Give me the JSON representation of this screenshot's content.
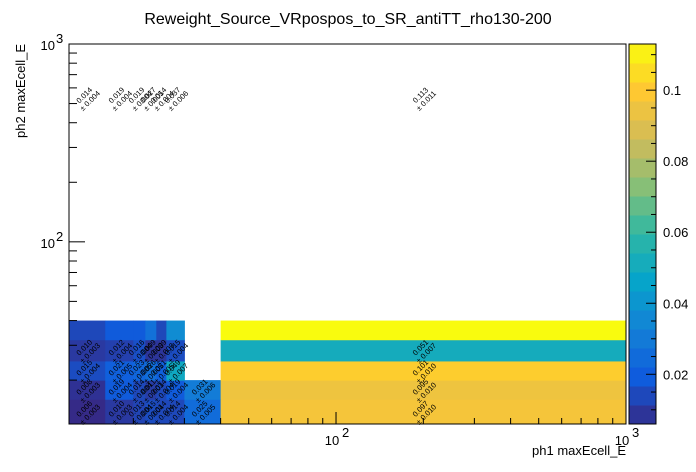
{
  "chart_data": {
    "type": "heatmap",
    "title": "Reweight_Source_VRpospos_to_SR_antiTT_rho130-200",
    "xlabel": "ph1 maxEcell_E",
    "ylabel": "ph2 maxEcell_E",
    "x_scale": "log",
    "y_scale": "log",
    "xlim": [
      12,
      1000
    ],
    "ylim": [
      12,
      1000
    ],
    "x_tick_labels": [
      {
        "value": 100,
        "label": "10",
        "exp": "2"
      },
      {
        "value": 1000,
        "label": "10",
        "exp": "3"
      }
    ],
    "y_tick_labels": [
      {
        "value": 100,
        "label": "10",
        "exp": "2"
      },
      {
        "value": 1000,
        "label": "10",
        "exp": "3"
      }
    ],
    "x_edges": [
      12,
      16,
      20,
      22,
      24,
      26,
      30,
      40,
      1000
    ],
    "y_edges": [
      12,
      16,
      20,
      25,
      32,
      40,
      1000
    ],
    "cells": [
      {
        "ix": 0,
        "iy": 0,
        "value": 0.006,
        "error": 0.003
      },
      {
        "ix": 1,
        "iy": 0,
        "value": 0.01,
        "error": 0.003
      },
      {
        "ix": 2,
        "iy": 0,
        "value": 0.013,
        "error": 0.004
      },
      {
        "ix": 3,
        "iy": 0,
        "value": 0.015,
        "error": 0.004
      },
      {
        "ix": 4,
        "iy": 0,
        "value": 0.014,
        "error": 0.004
      },
      {
        "ix": 5,
        "iy": 0,
        "value": 0.014,
        "error": 0.004
      },
      {
        "ix": 6,
        "iy": 0,
        "value": 0.025,
        "error": 0.005
      },
      {
        "ix": 7,
        "iy": 0,
        "value": 0.097,
        "error": 0.01
      },
      {
        "ix": 0,
        "iy": 1,
        "value": 0.008,
        "error": 0.003
      },
      {
        "ix": 1,
        "iy": 1,
        "value": 0.019,
        "error": 0.004
      },
      {
        "ix": 2,
        "iy": 1,
        "value": 0.014,
        "error": 0.004
      },
      {
        "ix": 3,
        "iy": 1,
        "value": 0.011,
        "error": 0.003
      },
      {
        "ix": 4,
        "iy": 1,
        "value": 0.014,
        "error": 0.004
      },
      {
        "ix": 5,
        "iy": 1,
        "value": 0.019,
        "error": 0.004
      },
      {
        "ix": 6,
        "iy": 1,
        "value": 0.031,
        "error": 0.006
      },
      {
        "ix": 7,
        "iy": 1,
        "value": 0.095,
        "error": 0.01
      },
      {
        "ix": 0,
        "iy": 2,
        "value": 0.015,
        "error": 0.004
      },
      {
        "ix": 1,
        "iy": 2,
        "value": 0.021,
        "error": 0.005
      },
      {
        "ix": 2,
        "iy": 2,
        "value": 0.023,
        "error": 0.005
      },
      {
        "ix": 3,
        "iy": 2,
        "value": 0.026,
        "error": 0.005
      },
      {
        "ix": 4,
        "iy": 2,
        "value": 0.021,
        "error": 0.005
      },
      {
        "ix": 5,
        "iy": 2,
        "value": 0.049,
        "error": 0.007
      },
      {
        "ix": 7,
        "iy": 2,
        "value": 0.101,
        "error": 0.01
      },
      {
        "ix": 0,
        "iy": 3,
        "value": 0.01,
        "error": 0.003
      },
      {
        "ix": 1,
        "iy": 3,
        "value": 0.012,
        "error": 0.004
      },
      {
        "ix": 2,
        "iy": 3,
        "value": 0.016,
        "error": 0.004
      },
      {
        "ix": 3,
        "iy": 3,
        "value": 0.009,
        "error": 0.003
      },
      {
        "ix": 4,
        "iy": 3,
        "value": 0.009,
        "error": 0.003
      },
      {
        "ix": 5,
        "iy": 3,
        "value": 0.015,
        "error": 0.004
      },
      {
        "ix": 7,
        "iy": 3,
        "value": 0.051,
        "error": 0.007
      },
      {
        "ix": 0,
        "iy": 4,
        "value": 0.014,
        "error": 0.004
      },
      {
        "ix": 1,
        "iy": 4,
        "value": 0.019,
        "error": 0.004
      },
      {
        "ix": 2,
        "iy": 4,
        "value": 0.019,
        "error": 0.004
      },
      {
        "ix": 3,
        "iy": 4,
        "value": 0.027,
        "error": 0.005
      },
      {
        "ix": 4,
        "iy": 4,
        "value": 0.014,
        "error": 0.004
      },
      {
        "ix": 5,
        "iy": 4,
        "value": 0.037,
        "error": 0.006
      },
      {
        "ix": 7,
        "iy": 4,
        "value": 0.113,
        "error": 0.011
      }
    ],
    "colorbar": {
      "min": 0.006,
      "max": 0.113,
      "tick_values": [
        0.02,
        0.04,
        0.06,
        0.08,
        0.1
      ],
      "tick_labels": [
        "0.02",
        "0.04",
        "0.06",
        "0.08",
        "0.1"
      ]
    },
    "palette": [
      "#352a87",
      "#0f5cdd",
      "#1481d6",
      "#06a4ca",
      "#2eb7a4",
      "#87bf77",
      "#d1bb59",
      "#fec832",
      "#f9fb0e"
    ]
  }
}
